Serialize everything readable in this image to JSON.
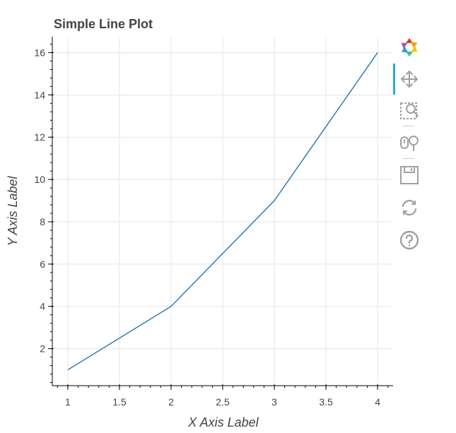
{
  "chart_data": {
    "type": "line",
    "title": "Simple Line Plot",
    "xlabel": "X Axis Label",
    "ylabel": "Y Axis Label",
    "series": [
      {
        "x": [
          1,
          2,
          3,
          4
        ],
        "y": [
          1,
          4,
          9,
          16
        ],
        "color": "#1f77b4"
      }
    ],
    "xlim": [
      0.85,
      4.15
    ],
    "ylim": [
      0.25,
      16.75
    ],
    "x_ticks": [
      1,
      1.5,
      2,
      2.5,
      3,
      3.5,
      4
    ],
    "x_tick_labels": [
      "1",
      "1.5",
      "2",
      "2.5",
      "3",
      "3.5",
      "4"
    ],
    "y_ticks": [
      2,
      4,
      6,
      8,
      10,
      12,
      14,
      16
    ],
    "y_tick_labels": [
      "2",
      "4",
      "6",
      "8",
      "10",
      "12",
      "14",
      "16"
    ],
    "grid": true,
    "legend": false
  },
  "toolbar": {
    "tools": [
      {
        "name": "bokeh-logo-icon",
        "interactable": true
      },
      {
        "name": "pan-tool-icon",
        "interactable": true,
        "active": true
      },
      {
        "name": "box-zoom-tool-icon",
        "interactable": true
      },
      {
        "name": "wheel-zoom-tool-icon",
        "interactable": true
      },
      {
        "name": "save-tool-icon",
        "interactable": true
      },
      {
        "name": "reset-tool-icon",
        "interactable": true
      },
      {
        "name": "help-tool-icon",
        "interactable": true
      }
    ],
    "active_color": "#26aae1",
    "icon_color": "#a0a0a0"
  }
}
